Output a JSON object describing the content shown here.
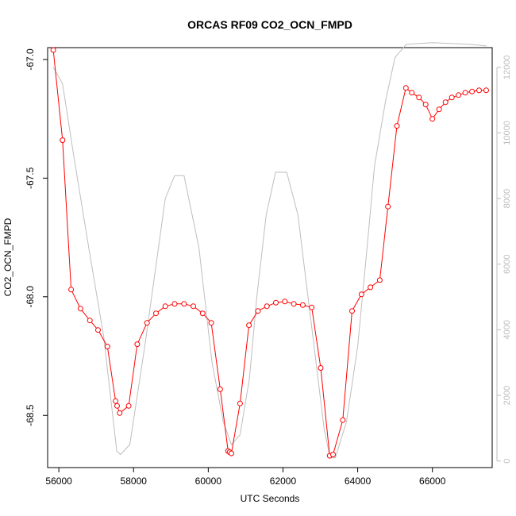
{
  "chart_data": {
    "type": "line",
    "title": "ORCAS RF09 CO2_OCN_FMPD",
    "xlabel": "UTC Seconds",
    "ylabel": "CO2_OCN_FMPD",
    "xlim": [
      55700,
      67600
    ],
    "ylim": [
      -68.72,
      -66.95
    ],
    "y2lim": [
      -200,
      12600
    ],
    "x_ticks": [
      56000,
      58000,
      60000,
      62000,
      64000,
      66000
    ],
    "y_ticks": [
      -67.0,
      -67.5,
      -68.0,
      -68.5
    ],
    "y2_ticks": [
      0,
      2000,
      4000,
      6000,
      8000,
      10000,
      12000
    ],
    "colors": {
      "primary": "#ff0000",
      "secondary": "#bebebe"
    },
    "series": [
      {
        "axis": "left",
        "style": "line-points",
        "color": "#ff0000",
        "x": [
          55850,
          56100,
          56330,
          56580,
          56830,
          57050,
          57300,
          57520,
          57560,
          57630,
          57870,
          58100,
          58360,
          58600,
          58850,
          59100,
          59350,
          59600,
          59850,
          60080,
          60320,
          60530,
          60570,
          60620,
          60850,
          61090,
          61330,
          61570,
          61810,
          62050,
          62290,
          62530,
          62770,
          63010,
          63250,
          63340,
          63600,
          63850,
          64100,
          64340,
          64590,
          64810,
          65050,
          65290,
          65450,
          65640,
          65820,
          66000,
          66180,
          66350,
          66520,
          66700,
          66880,
          67060,
          67250,
          67440
        ],
        "y": [
          -66.96,
          -67.34,
          -67.97,
          -68.05,
          -68.1,
          -68.14,
          -68.21,
          -68.44,
          -68.46,
          -68.49,
          -68.46,
          -68.2,
          -68.11,
          -68.07,
          -68.04,
          -68.03,
          -68.03,
          -68.04,
          -68.07,
          -68.11,
          -68.39,
          -68.65,
          -68.655,
          -68.66,
          -68.45,
          -68.12,
          -68.06,
          -68.04,
          -68.025,
          -68.02,
          -68.03,
          -68.035,
          -68.045,
          -68.3,
          -68.67,
          -68.665,
          -68.52,
          -68.06,
          -67.99,
          -67.96,
          -67.93,
          -67.62,
          -67.28,
          -67.12,
          -67.14,
          -67.16,
          -67.19,
          -67.25,
          -67.21,
          -67.18,
          -67.16,
          -67.15,
          -67.14,
          -67.135,
          -67.13,
          -67.13
        ]
      },
      {
        "axis": "right",
        "style": "line",
        "color": "#bebebe",
        "x": [
          55850,
          56100,
          56400,
          56800,
          57200,
          57550,
          57650,
          57900,
          58300,
          58850,
          59100,
          59350,
          59750,
          60100,
          60400,
          60620,
          60850,
          61100,
          61300,
          61550,
          61800,
          62100,
          62400,
          62800,
          63100,
          63260,
          63400,
          63700,
          64000,
          64250,
          64450,
          64750,
          65000,
          65300,
          66000,
          67000,
          67450
        ],
        "y": [
          12000,
          11500,
          9300,
          6500,
          3800,
          300,
          200,
          500,
          3500,
          8000,
          8700,
          8700,
          6500,
          3000,
          1200,
          500,
          800,
          2500,
          5000,
          7500,
          8800,
          8800,
          7500,
          3800,
          1000,
          100,
          100,
          1200,
          3500,
          6500,
          9000,
          11000,
          12300,
          12700,
          12750,
          12700,
          12650
        ]
      }
    ]
  }
}
